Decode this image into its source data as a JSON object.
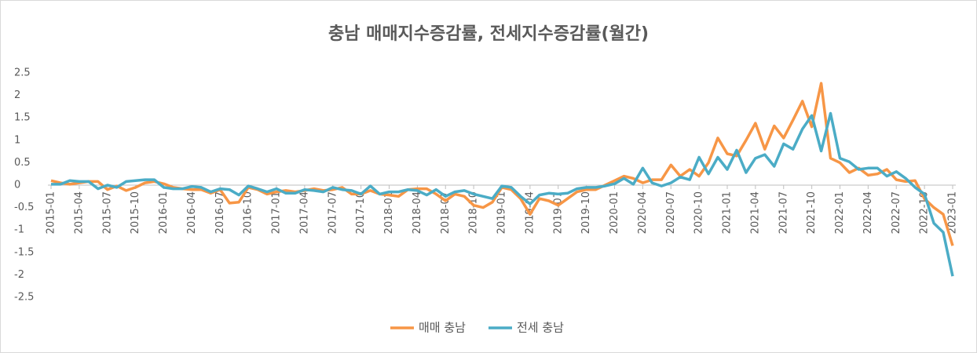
{
  "chart_data": {
    "type": "line",
    "title": "충남 매매지수증감률, 전세지수증감률(월간)",
    "categories": [
      "2015-01",
      null,
      null,
      "2015-04",
      null,
      null,
      "2015-07",
      null,
      null,
      "2015-10",
      null,
      null,
      "2016-01",
      null,
      null,
      "2016-04",
      null,
      null,
      "2016-07",
      null,
      null,
      "2016-10",
      null,
      null,
      "2017-01",
      null,
      null,
      "2017-04",
      null,
      null,
      "2017-07",
      null,
      null,
      "2017-10",
      null,
      null,
      "2018-01",
      null,
      null,
      "2018-04",
      null,
      null,
      "2018-07",
      null,
      null,
      "2018-10",
      null,
      null,
      "2019-01",
      null,
      null,
      "2019-04",
      null,
      null,
      "2019-07",
      null,
      null,
      "2019-10",
      null,
      null,
      "2020-01",
      null,
      null,
      "2020-04",
      null,
      null,
      "2020-07",
      null,
      null,
      "2020-10",
      null,
      null,
      "2021-01",
      null,
      null,
      "2021-04",
      null,
      null,
      "2021-07",
      null,
      null,
      "2021-10",
      null,
      null,
      "2022-01",
      null,
      null,
      "2022-04",
      null,
      null,
      "2022-07",
      null,
      null,
      "2022-10",
      null,
      null,
      "2023-01"
    ],
    "series": [
      {
        "name": "매매 충남",
        "color": "#f79646",
        "values": [
          0.1,
          0.05,
          0.02,
          0.05,
          0.08,
          0.08,
          -0.1,
          -0.02,
          -0.12,
          -0.05,
          0.05,
          0.08,
          0.03,
          -0.05,
          -0.08,
          -0.1,
          -0.1,
          -0.18,
          -0.1,
          -0.4,
          -0.38,
          -0.05,
          -0.1,
          -0.2,
          -0.15,
          -0.12,
          -0.15,
          -0.12,
          -0.08,
          -0.12,
          -0.1,
          -0.05,
          -0.2,
          -0.2,
          -0.12,
          -0.2,
          -0.22,
          -0.25,
          -0.1,
          -0.08,
          -0.08,
          -0.2,
          -0.35,
          -0.2,
          -0.25,
          -0.45,
          -0.5,
          -0.38,
          -0.05,
          -0.1,
          -0.3,
          -0.65,
          -0.3,
          -0.35,
          -0.45,
          -0.3,
          -0.15,
          -0.1,
          -0.1,
          0,
          0.1,
          0.2,
          0.15,
          0.05,
          0.12,
          0.12,
          0.45,
          0.2,
          0.35,
          0.2,
          0.5,
          1.05,
          0.7,
          0.65,
          1.0,
          1.38,
          0.8,
          1.32,
          1.05,
          1.45,
          1.87,
          1.3,
          2.27,
          0.6,
          0.5,
          0.28,
          0.38,
          0.22,
          0.25,
          0.35,
          0.12,
          0.08,
          0.1,
          -0.3,
          -0.5,
          -0.65,
          -1.35
        ]
      },
      {
        "name": "전세 충남",
        "color": "#4bacc6",
        "values": [
          0.02,
          0.02,
          0.1,
          0.08,
          0.08,
          -0.08,
          0,
          -0.05,
          0.08,
          0.1,
          0.12,
          0.12,
          -0.05,
          -0.08,
          -0.08,
          -0.03,
          -0.05,
          -0.15,
          -0.08,
          -0.1,
          -0.22,
          -0.02,
          -0.08,
          -0.15,
          -0.08,
          -0.18,
          -0.18,
          -0.1,
          -0.12,
          -0.15,
          -0.05,
          -0.1,
          -0.12,
          -0.2,
          -0.02,
          -0.2,
          -0.15,
          -0.15,
          -0.1,
          -0.12,
          -0.22,
          -0.1,
          -0.25,
          -0.15,
          -0.12,
          -0.2,
          -0.25,
          -0.3,
          -0.02,
          -0.05,
          -0.25,
          -0.42,
          -0.22,
          -0.18,
          -0.2,
          -0.18,
          -0.08,
          -0.05,
          -0.05,
          -0.02,
          0.03,
          0.15,
          0.02,
          0.38,
          0.05,
          -0.02,
          0.05,
          0.18,
          0.12,
          0.62,
          0.25,
          0.62,
          0.35,
          0.78,
          0.28,
          0.6,
          0.68,
          0.42,
          0.92,
          0.8,
          1.25,
          1.55,
          0.76,
          1.6,
          0.6,
          0.52,
          0.35,
          0.38,
          0.38,
          0.2,
          0.3,
          0.15,
          -0.05,
          -0.2,
          -0.85,
          -1.05,
          -2.03
        ]
      }
    ],
    "ylim": [
      -2.5,
      2.5
    ],
    "yticks": [
      2.5,
      2,
      1.5,
      1,
      0.5,
      0,
      -0.5,
      -1,
      -1.5,
      -2,
      -2.5
    ],
    "grid": false,
    "legend": "bottom"
  }
}
